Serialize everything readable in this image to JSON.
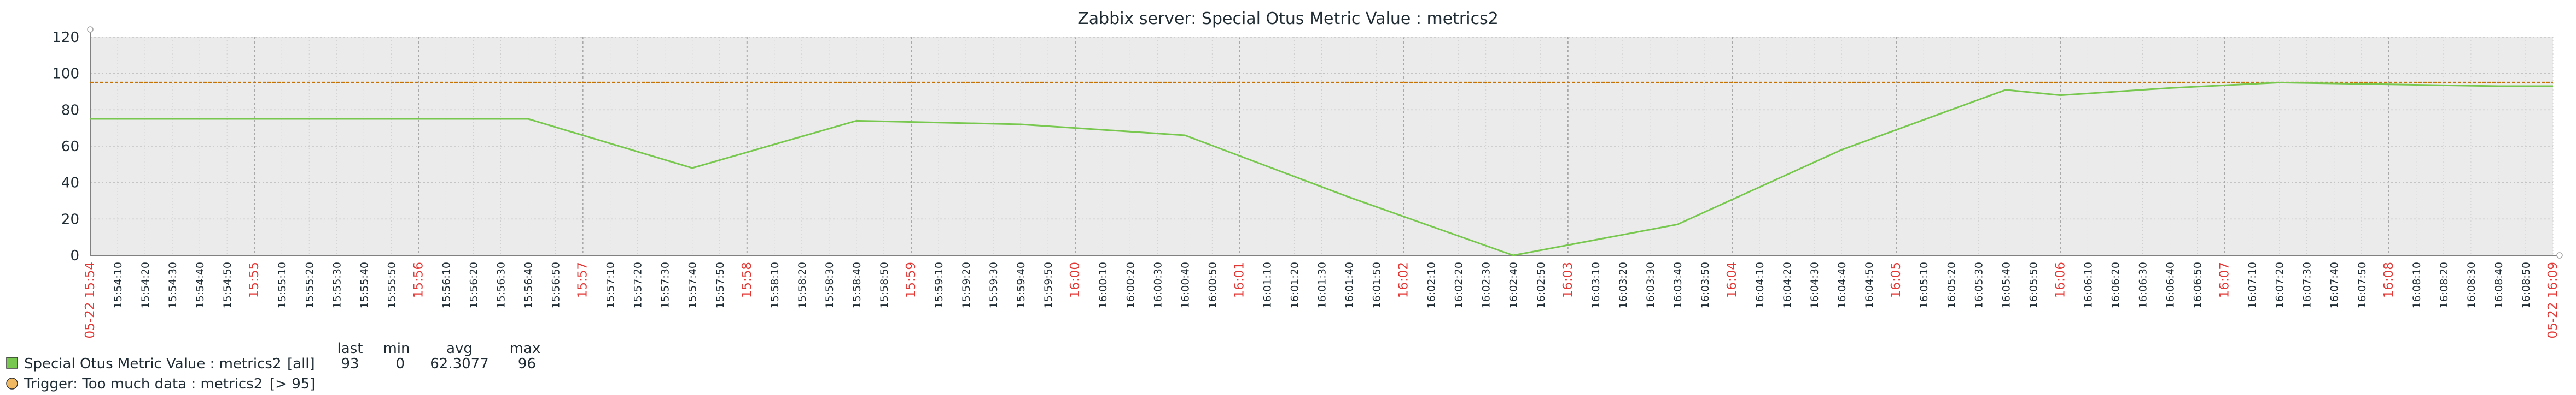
{
  "chart_data": {
    "type": "line",
    "title": "Zabbix server: Special Otus Metric Value : metrics2",
    "ylim": [
      0,
      120
    ],
    "y_ticks": [
      0,
      20,
      40,
      60,
      80,
      100,
      120
    ],
    "grid": true,
    "x_start_label": "05-22 15:54",
    "x_end_label": "05-22 16:09",
    "major_ticks": [
      "15:55",
      "15:56",
      "15:57",
      "15:58",
      "15:59",
      "16:00",
      "16:01",
      "16:02",
      "16:03",
      "16:04",
      "16:05",
      "16:06",
      "16:07",
      "16:08",
      "16:09"
    ],
    "series": [
      {
        "name": "Special Otus Metric Value : metrics2",
        "color": "#78c850",
        "x_seconds": [
          0,
          40,
          100,
          160,
          220,
          280,
          340,
          400,
          460,
          520,
          580,
          640,
          700,
          720,
          760,
          800,
          880,
          900
        ],
        "values": [
          75,
          75,
          75,
          75,
          48,
          74,
          72,
          66,
          32,
          0,
          17,
          58,
          91,
          88,
          92,
          95,
          93,
          93
        ]
      }
    ],
    "trigger": {
      "value": 95,
      "color": "#c87000"
    }
  },
  "legend": {
    "headers": {
      "last": "last",
      "min": "min",
      "avg": "avg",
      "max": "max"
    },
    "series_row": {
      "name": "Special Otus Metric Value : metrics2",
      "scope": "[all]",
      "last": "93",
      "min": "0",
      "avg": "62.3077",
      "max": "96",
      "color": "#78c850"
    },
    "trigger_row": {
      "label": "Trigger: Too much data : metrics2",
      "condition": "[> 95]",
      "color": "#f0b860"
    }
  }
}
